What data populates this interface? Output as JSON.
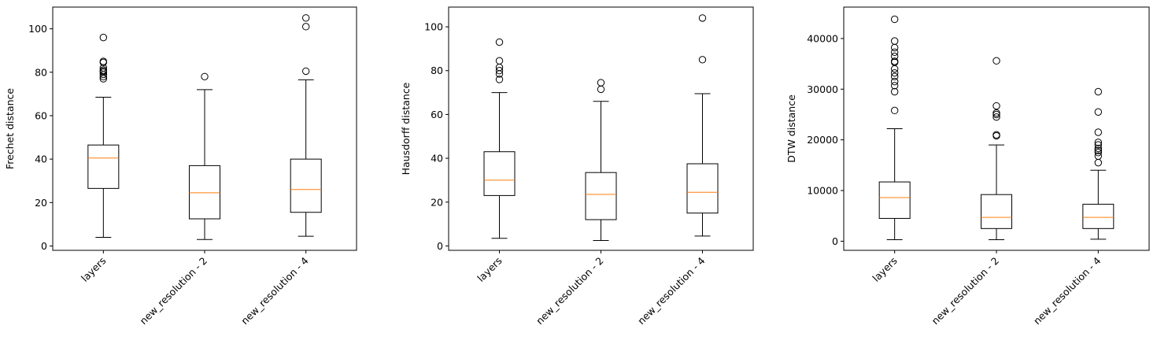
{
  "chart_data": [
    {
      "type": "box",
      "ylabel": "Frechet distance",
      "categories": [
        "layers",
        "new_resolution - 2",
        "new_resolution - 4"
      ],
      "ylim": [
        -2,
        110
      ],
      "yticks": [
        0,
        20,
        40,
        60,
        80,
        100
      ],
      "boxes": [
        {
          "whisker_low": 4,
          "q1": 26.5,
          "median": 40.5,
          "q3": 46.5,
          "whisker_high": 68.5,
          "outliers": [
            77,
            78,
            79,
            80,
            80.5,
            81,
            82,
            84.5,
            85,
            96
          ]
        },
        {
          "whisker_low": 3,
          "q1": 12.5,
          "median": 24.5,
          "q3": 37,
          "whisker_high": 72,
          "outliers": [
            78
          ]
        },
        {
          "whisker_low": 4.5,
          "q1": 15.5,
          "median": 26,
          "q3": 40,
          "whisker_high": 76.5,
          "outliers": [
            80.5,
            101,
            105
          ]
        }
      ]
    },
    {
      "type": "box",
      "ylabel": "Hausdorff distance",
      "categories": [
        "layers",
        "new_resolution - 2",
        "new_resolution - 4"
      ],
      "ylim": [
        -2,
        109
      ],
      "yticks": [
        0,
        20,
        40,
        60,
        80,
        100
      ],
      "boxes": [
        {
          "whisker_low": 3.5,
          "q1": 23,
          "median": 30,
          "q3": 43,
          "whisker_high": 70,
          "outliers": [
            76,
            78.5,
            80,
            81.5,
            84.5,
            93
          ]
        },
        {
          "whisker_low": 2.5,
          "q1": 12,
          "median": 23.5,
          "q3": 33.5,
          "whisker_high": 66,
          "outliers": [
            71.5,
            74.5
          ]
        },
        {
          "whisker_low": 4.5,
          "q1": 15,
          "median": 24.5,
          "q3": 37.5,
          "whisker_high": 69.5,
          "outliers": [
            85,
            104
          ]
        }
      ]
    },
    {
      "type": "box",
      "ylabel": "DTW distance",
      "categories": [
        "layers",
        "new_resolution - 2",
        "new_resolution - 4"
      ],
      "ylim": [
        -1800,
        46200
      ],
      "yticks": [
        0,
        10000,
        20000,
        30000,
        40000
      ],
      "boxes": [
        {
          "whisker_low": 300,
          "q1": 4500,
          "median": 8600,
          "q3": 11700,
          "whisker_high": 22200,
          "outliers": [
            25800,
            29500,
            30700,
            31500,
            32500,
            33200,
            34000,
            35300,
            35500,
            36500,
            37300,
            38200,
            39500,
            43800
          ]
        },
        {
          "whisker_low": 300,
          "q1": 2500,
          "median": 4700,
          "q3": 9200,
          "whisker_high": 19000,
          "outliers": [
            20800,
            21000,
            24500,
            25000,
            25300,
            26700,
            35600
          ]
        },
        {
          "whisker_low": 400,
          "q1": 2500,
          "median": 4700,
          "q3": 7300,
          "whisker_high": 14000,
          "outliers": [
            15500,
            16800,
            17500,
            17900,
            18300,
            19000,
            19500,
            21500,
            25500,
            29500
          ]
        }
      ]
    }
  ],
  "colors": {
    "median": "#ff7f0e",
    "box": "#000000"
  }
}
